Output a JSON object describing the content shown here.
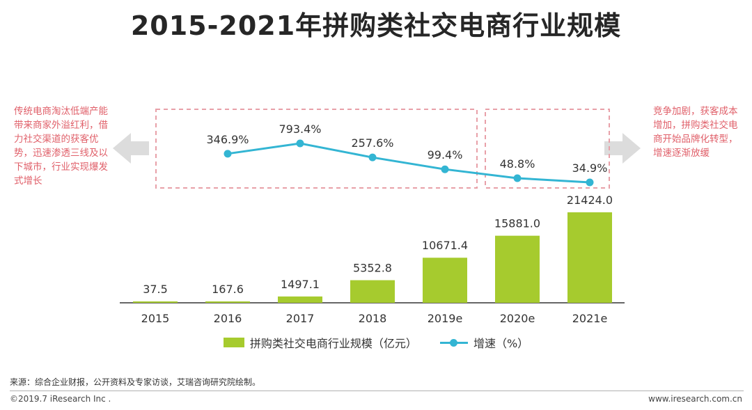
{
  "page": {
    "title": "2015-2021年拼购类社交电商行业规模",
    "left_note": "传统电商淘汰低端产能带来商家外溢红利，借力社交渠道的获客优势，迅速渗透三线及以下城市，行业实现爆发式增长",
    "right_note": "竞争加剧，获客成本增加，拼购类社交电商开始品牌化转型，增速逐渐放缓",
    "source": "来源：综合企业财报，公开资料及专家访谈，艾瑞咨询研究院绘制。",
    "copyright": "©2019.7 iResearch Inc .",
    "website": "www.iresearch.com.cn"
  },
  "colors": {
    "bar": "#a6cb2e",
    "line": "#33b5d3",
    "note": "#e0606a",
    "dash_box": "#e8a0a8",
    "arrow": "#dcdcdc"
  },
  "chart_data": {
    "type": "bar+line",
    "categories": [
      "2015",
      "2016",
      "2017",
      "2018",
      "2019e",
      "2020e",
      "2021e"
    ],
    "series": [
      {
        "name": "拼购类社交电商行业规模（亿元）",
        "type": "bar",
        "values": [
          37.5,
          167.6,
          1497.1,
          5352.8,
          10671.4,
          15881.0,
          21424.0
        ],
        "labels": [
          "37.5",
          "167.6",
          "1497.1",
          "5352.8",
          "10671.4",
          "15881.0",
          "21424.0"
        ]
      },
      {
        "name": "增速（%）",
        "type": "line",
        "x": [
          "2016",
          "2017",
          "2018",
          "2019e",
          "2020e",
          "2021e"
        ],
        "values": [
          346.9,
          793.4,
          257.6,
          99.4,
          48.8,
          34.9
        ],
        "labels": [
          "346.9%",
          "793.4%",
          "257.6%",
          "99.4%",
          "48.8%",
          "34.9%"
        ]
      }
    ],
    "bar_ylim": [
      0,
      21424.0
    ],
    "line_ylim": [
      0,
      793.4
    ],
    "legend_position": "bottom-center"
  }
}
